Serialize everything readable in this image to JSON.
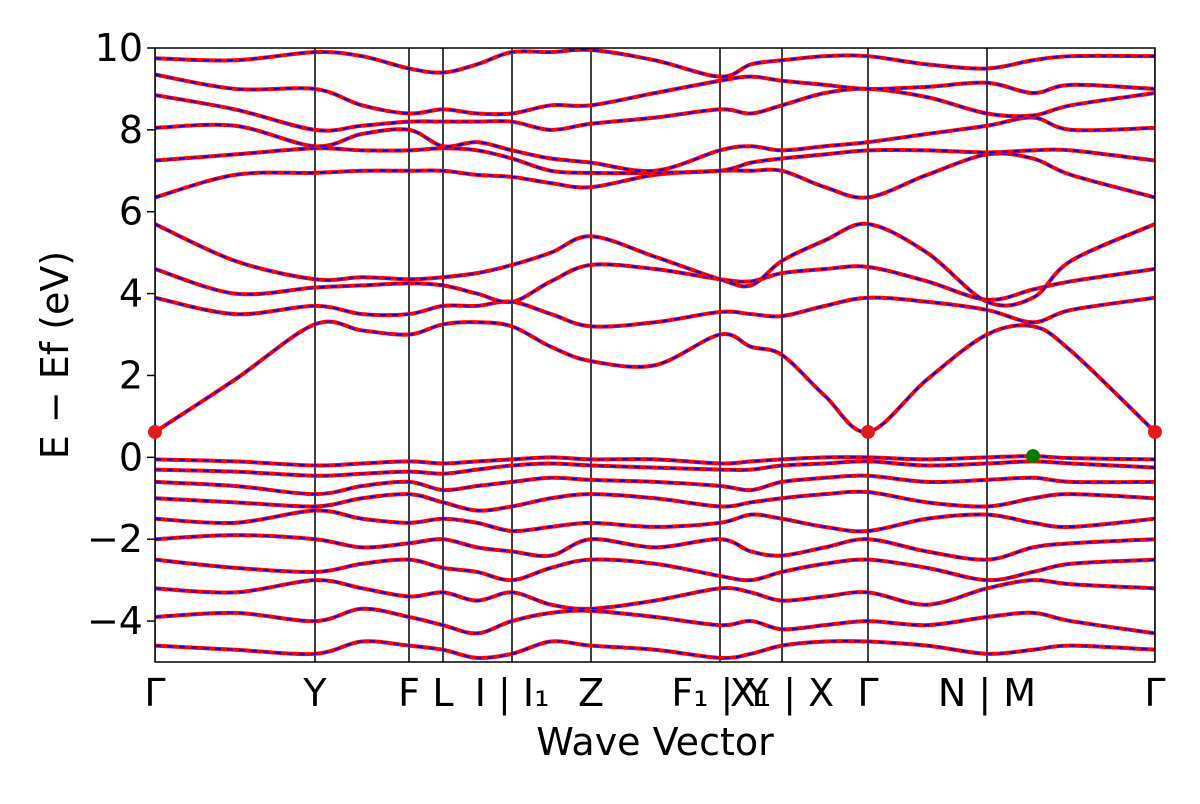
{
  "chart_data": {
    "type": "line",
    "xlabel": "Wave Vector",
    "ylabel": "E − Ef (eV)",
    "xlim": [
      0,
      5.0
    ],
    "ylim": [
      -5,
      10
    ],
    "yticks": [
      {
        "value": -4,
        "label": "−4"
      },
      {
        "value": -2,
        "label": "−2"
      },
      0,
      2,
      4,
      6,
      8,
      10
    ],
    "xticks": [
      {
        "value": 0,
        "label": "Γ"
      },
      {
        "value": 0.8,
        "label": "Y"
      },
      {
        "value": 1.27,
        "label": "F"
      },
      {
        "value": 1.44,
        "label": "L"
      },
      {
        "value": 1.785,
        "label": "I | I₁"
      },
      {
        "value": 2.18,
        "label": "Z"
      },
      {
        "value": 2.825,
        "label": "F₁ | Y"
      },
      {
        "value": 3.135,
        "label": "X₁ | X"
      },
      {
        "value": 3.565,
        "label": "Γ"
      },
      {
        "value": 4.16,
        "label": "N | M"
      },
      {
        "value": 5.0,
        "label": "Γ"
      }
    ],
    "line_color": "#ff0000",
    "dash_color": "#0000ff",
    "tick_line_color": "#000000",
    "x": [
      0,
      0.4,
      0.8,
      1.035,
      1.27,
      1.44,
      1.61,
      1.785,
      1.98,
      2.18,
      2.5,
      2.825,
      2.98,
      3.135,
      3.35,
      3.565,
      3.86,
      4.16,
      4.39,
      4.58,
      5.0
    ],
    "series": [
      {
        "values": [
          0.62,
          1.9,
          3.25,
          3.1,
          3.0,
          3.25,
          3.3,
          3.2,
          2.7,
          2.35,
          2.25,
          3.0,
          2.7,
          2.5,
          1.5,
          0.62,
          1.9,
          3.0,
          3.2,
          2.6,
          0.62
        ]
      },
      {
        "values": [
          3.9,
          3.5,
          3.7,
          3.5,
          3.5,
          3.7,
          3.7,
          3.8,
          3.5,
          3.2,
          3.3,
          3.55,
          3.5,
          3.45,
          3.7,
          3.9,
          3.8,
          3.6,
          3.3,
          3.6,
          3.9
        ]
      },
      {
        "values": [
          4.6,
          4.0,
          4.15,
          4.2,
          4.25,
          4.2,
          4.0,
          3.8,
          4.3,
          4.7,
          4.6,
          4.35,
          4.3,
          4.5,
          4.6,
          4.65,
          4.3,
          3.85,
          4.1,
          4.3,
          4.6
        ]
      },
      {
        "values": [
          5.7,
          4.8,
          4.35,
          4.4,
          4.35,
          4.4,
          4.5,
          4.7,
          5.0,
          5.4,
          4.9,
          4.35,
          4.2,
          4.8,
          5.3,
          5.7,
          5.0,
          3.8,
          3.9,
          4.8,
          5.7
        ]
      },
      {
        "values": [
          6.35,
          6.9,
          6.95,
          7.0,
          7.0,
          7.0,
          6.9,
          6.85,
          6.7,
          6.6,
          6.9,
          7.0,
          7.0,
          7.0,
          6.6,
          6.35,
          6.9,
          7.4,
          7.3,
          6.9,
          6.35
        ]
      },
      {
        "values": [
          7.25,
          7.4,
          7.55,
          7.5,
          7.5,
          7.55,
          7.5,
          7.3,
          7.0,
          6.95,
          6.95,
          7.0,
          7.2,
          7.3,
          7.4,
          7.5,
          7.5,
          7.45,
          7.5,
          7.5,
          7.25
        ]
      },
      {
        "values": [
          8.05,
          8.1,
          7.6,
          7.9,
          8.0,
          7.6,
          7.7,
          7.5,
          7.3,
          7.2,
          7.0,
          7.5,
          7.6,
          7.5,
          7.6,
          7.7,
          7.9,
          8.1,
          8.3,
          8.0,
          8.05
        ]
      },
      {
        "values": [
          8.85,
          8.5,
          8.0,
          8.1,
          8.2,
          8.2,
          8.2,
          8.2,
          8.0,
          8.15,
          8.3,
          8.5,
          8.4,
          8.6,
          8.9,
          9.0,
          8.8,
          8.4,
          8.35,
          8.6,
          8.9
        ]
      },
      {
        "values": [
          9.35,
          9.0,
          9.0,
          8.6,
          8.4,
          8.5,
          8.4,
          8.4,
          8.6,
          8.6,
          8.9,
          9.2,
          9.3,
          9.2,
          9.1,
          9.0,
          9.05,
          9.15,
          8.9,
          9.1,
          9.0
        ]
      },
      {
        "values": [
          9.75,
          9.7,
          9.9,
          9.8,
          9.5,
          9.4,
          9.6,
          9.9,
          9.9,
          9.95,
          9.7,
          9.3,
          9.6,
          9.7,
          9.8,
          9.8,
          9.6,
          9.5,
          9.7,
          9.8,
          9.8
        ]
      },
      {
        "values": [
          -0.05,
          -0.1,
          -0.2,
          -0.15,
          -0.1,
          -0.15,
          -0.1,
          -0.05,
          0.0,
          -0.05,
          -0.05,
          -0.15,
          -0.1,
          -0.05,
          0.0,
          0.0,
          -0.05,
          0.0,
          0.03,
          -0.02,
          -0.05
        ]
      },
      {
        "values": [
          -0.3,
          -0.35,
          -0.45,
          -0.4,
          -0.35,
          -0.4,
          -0.3,
          -0.2,
          -0.15,
          -0.2,
          -0.25,
          -0.3,
          -0.3,
          -0.2,
          -0.15,
          -0.1,
          -0.2,
          -0.15,
          -0.1,
          -0.15,
          -0.25
        ]
      },
      {
        "values": [
          -0.6,
          -0.7,
          -0.9,
          -0.7,
          -0.6,
          -0.8,
          -0.7,
          -0.6,
          -0.5,
          -0.55,
          -0.6,
          -0.7,
          -0.8,
          -0.6,
          -0.5,
          -0.45,
          -0.6,
          -0.55,
          -0.5,
          -0.6,
          -0.6
        ]
      },
      {
        "values": [
          -1.0,
          -1.1,
          -1.2,
          -1.0,
          -0.9,
          -1.1,
          -1.3,
          -1.2,
          -1.0,
          -0.9,
          -1.0,
          -1.2,
          -1.1,
          -1.0,
          -0.9,
          -0.85,
          -1.1,
          -1.2,
          -1.0,
          -0.9,
          -1.0
        ]
      },
      {
        "values": [
          -1.5,
          -1.6,
          -1.3,
          -1.5,
          -1.6,
          -1.5,
          -1.6,
          -1.8,
          -1.7,
          -1.6,
          -1.7,
          -1.6,
          -1.4,
          -1.5,
          -1.7,
          -1.8,
          -1.5,
          -1.4,
          -1.6,
          -1.7,
          -1.5
        ]
      },
      {
        "values": [
          -2.0,
          -1.9,
          -2.0,
          -2.2,
          -2.1,
          -2.0,
          -2.2,
          -2.3,
          -2.4,
          -2.0,
          -2.2,
          -2.0,
          -2.3,
          -2.4,
          -2.2,
          -2.0,
          -2.3,
          -2.5,
          -2.2,
          -2.1,
          -2.0
        ]
      },
      {
        "values": [
          -2.5,
          -2.7,
          -2.8,
          -2.6,
          -2.5,
          -2.7,
          -2.8,
          -3.0,
          -2.7,
          -2.5,
          -2.6,
          -2.9,
          -3.0,
          -2.8,
          -2.6,
          -2.5,
          -2.7,
          -3.0,
          -2.8,
          -2.6,
          -2.5
        ]
      },
      {
        "values": [
          -3.2,
          -3.3,
          -3.0,
          -3.2,
          -3.4,
          -3.3,
          -3.5,
          -3.3,
          -3.6,
          -3.7,
          -3.5,
          -3.2,
          -3.3,
          -3.5,
          -3.4,
          -3.3,
          -3.6,
          -3.2,
          -3.0,
          -3.1,
          -3.2
        ]
      },
      {
        "values": [
          -3.9,
          -3.8,
          -4.0,
          -3.7,
          -3.9,
          -4.1,
          -4.3,
          -4.0,
          -3.8,
          -3.75,
          -3.9,
          -4.1,
          -4.0,
          -4.2,
          -4.1,
          -4.0,
          -4.1,
          -3.9,
          -3.8,
          -4.0,
          -4.3
        ]
      },
      {
        "values": [
          -4.6,
          -4.7,
          -4.8,
          -4.5,
          -4.6,
          -4.7,
          -4.9,
          -4.8,
          -4.5,
          -4.6,
          -4.7,
          -4.9,
          -4.8,
          -4.6,
          -4.5,
          -4.5,
          -4.6,
          -4.8,
          -4.7,
          -4.6,
          -4.7
        ]
      }
    ],
    "cbm": {
      "x": [
        0,
        3.565,
        5.0
      ],
      "y": [
        0.62,
        0.62,
        0.62
      ],
      "color": "#e31a1c"
    },
    "vbm": {
      "x": [
        4.39
      ],
      "y": [
        0.03
      ],
      "color": "#007a00"
    }
  }
}
